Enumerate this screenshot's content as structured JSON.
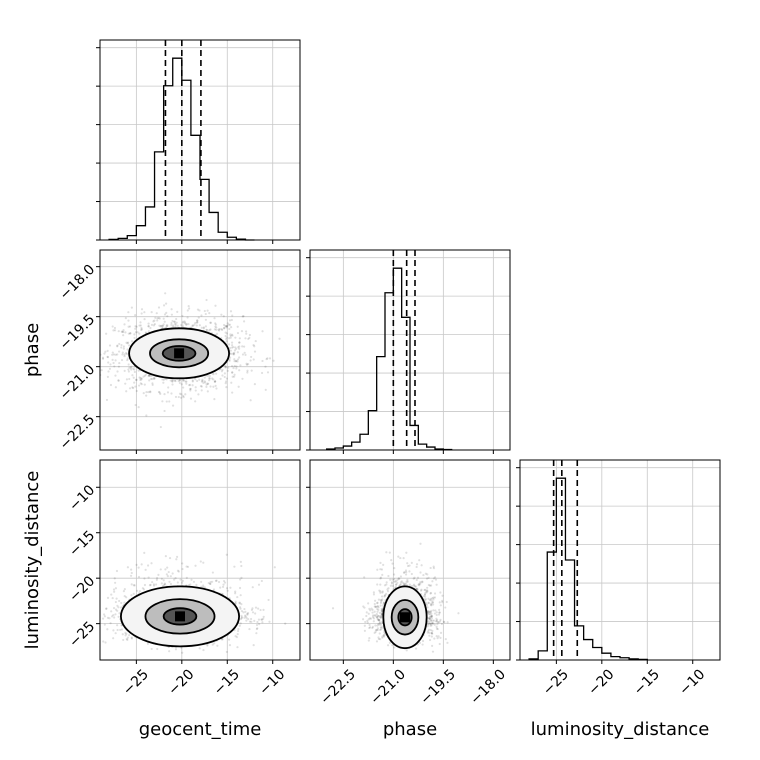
{
  "chart_data": {
    "type": "corner",
    "parameters": [
      "geocent_time",
      "phase",
      "luminosity_distance"
    ],
    "grid": true,
    "ranges": {
      "geocent_time": [
        -29,
        -7
      ],
      "phase": [
        -23.5,
        -17.5
      ],
      "luminosity_distance": [
        -29,
        -7
      ]
    },
    "ticks": {
      "geocent_time": [
        "−25",
        "−20",
        "−15",
        "−10"
      ],
      "phase": [
        "−22.5",
        "−21.0",
        "−19.5",
        "−18.0"
      ],
      "luminosity_distance": [
        "−25",
        "−20",
        "−15",
        "−10"
      ]
    },
    "tick_values": {
      "geocent_time": [
        -25,
        -20,
        -15,
        -10
      ],
      "phase": [
        -22.5,
        -21.0,
        -19.5,
        -18.0
      ],
      "luminosity_distance": [
        -25,
        -20,
        -15,
        -10
      ]
    },
    "histograms": [
      {
        "parameter": "geocent_time",
        "bin_edges": [
          -28,
          -27,
          -26,
          -25,
          -24,
          -23,
          -22,
          -21,
          -20,
          -19,
          -18,
          -17,
          -16,
          -15,
          -14,
          -13,
          -12
        ],
        "counts": [
          0.5,
          1.5,
          4,
          13,
          30,
          80,
          140,
          165,
          145,
          95,
          55,
          25,
          7,
          2.5,
          0.8,
          0
        ],
        "quantiles": [
          -21.8,
          -20.0,
          -17.9
        ]
      },
      {
        "parameter": "phase",
        "bin_edges": [
          -23.0,
          -22.75,
          -22.5,
          -22.25,
          -22.0,
          -21.75,
          -21.5,
          -21.25,
          -21.0,
          -20.75,
          -20.5,
          -20.25,
          -20.0,
          -19.75,
          -19.5,
          -19.25
        ],
        "counts": [
          1,
          2,
          4,
          8,
          16,
          40,
          95,
          160,
          185,
          135,
          25,
          6,
          3,
          1,
          0.5
        ],
        "quantiles": [
          -21.0,
          -20.6,
          -20.35
        ]
      },
      {
        "parameter": "luminosity_distance",
        "bin_edges": [
          -28,
          -27,
          -26,
          -25,
          -24,
          -23,
          -22,
          -21,
          -20,
          -19,
          -18,
          -17,
          -16,
          -15
        ],
        "counts": [
          1,
          8,
          95,
          160,
          88,
          30,
          18,
          11,
          6,
          3,
          2,
          1,
          0.5
        ],
        "quantiles": [
          -25.3,
          -24.4,
          -22.7
        ]
      }
    ],
    "density_panels": [
      {
        "x": "geocent_time",
        "y": "phase",
        "center": [
          -20.3,
          -20.6
        ],
        "spread": [
          3.5,
          0.55
        ],
        "contours": [
          [
            5.5,
            0.75
          ],
          [
            3.2,
            0.42
          ],
          [
            1.8,
            0.22
          ]
        ]
      },
      {
        "x": "geocent_time",
        "y": "luminosity_distance",
        "center": [
          -20.2,
          -24.2
        ],
        "spread": [
          3.5,
          1.4
        ],
        "contours": [
          [
            6.5,
            3.3
          ],
          [
            3.8,
            1.9
          ],
          [
            1.8,
            0.9
          ]
        ]
      },
      {
        "x": "phase",
        "y": "luminosity_distance",
        "center": [
          -20.65,
          -24.3
        ],
        "spread": [
          0.45,
          1.3
        ],
        "contours": [
          [
            0.65,
            3.4
          ],
          [
            0.4,
            1.9
          ],
          [
            0.2,
            0.9
          ]
        ]
      }
    ]
  }
}
